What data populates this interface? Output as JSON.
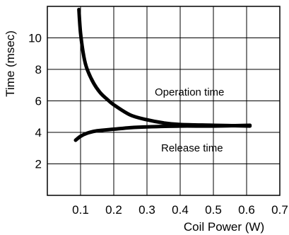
{
  "chart_data": {
    "type": "line",
    "xlabel": "Coil Power (W)",
    "ylabel": "Time (msec)",
    "xlim": [
      0,
      0.7
    ],
    "ylim": [
      0,
      12
    ],
    "x_ticks": [
      "0.1",
      "0.2",
      "0.3",
      "0.4",
      "0.5",
      "0.6",
      "0.7"
    ],
    "y_ticks": [
      "2",
      "4",
      "6",
      "8",
      "10"
    ],
    "grid": true,
    "series": [
      {
        "name": "Operation time",
        "points": [
          [
            0.095,
            11.8
          ],
          [
            0.1,
            10.3
          ],
          [
            0.11,
            8.8
          ],
          [
            0.12,
            8.0
          ],
          [
            0.14,
            7.1
          ],
          [
            0.16,
            6.5
          ],
          [
            0.18,
            6.1
          ],
          [
            0.2,
            5.75
          ],
          [
            0.25,
            5.1
          ],
          [
            0.3,
            4.8
          ],
          [
            0.35,
            4.6
          ],
          [
            0.4,
            4.5
          ],
          [
            0.5,
            4.45
          ],
          [
            0.61,
            4.4
          ]
        ]
      },
      {
        "name": "Release time",
        "points": [
          [
            0.085,
            3.5
          ],
          [
            0.1,
            3.75
          ],
          [
            0.12,
            3.95
          ],
          [
            0.15,
            4.1
          ],
          [
            0.2,
            4.2
          ],
          [
            0.25,
            4.3
          ],
          [
            0.3,
            4.35
          ],
          [
            0.4,
            4.4
          ],
          [
            0.5,
            4.4
          ],
          [
            0.61,
            4.45
          ]
        ]
      }
    ],
    "annotations": [
      "Operation time",
      "Release time"
    ]
  },
  "style": {
    "line_color": "#000000",
    "background": "#ffffff"
  }
}
